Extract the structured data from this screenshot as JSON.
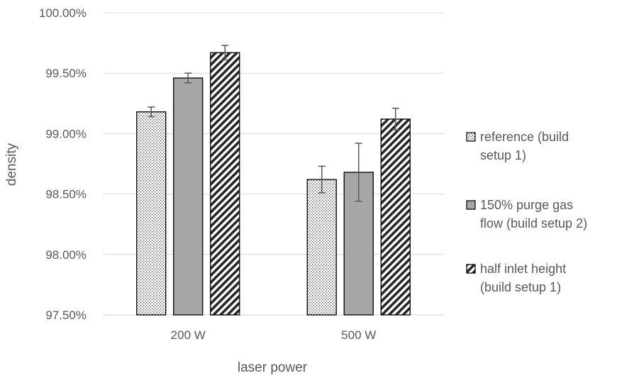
{
  "chart_data": {
    "type": "bar",
    "title": "",
    "xlabel": "laser power",
    "ylabel": "density",
    "categories": [
      "200 W",
      "500 W"
    ],
    "ylim": [
      0.975,
      1.0
    ],
    "yticks": [
      0.975,
      0.98,
      0.985,
      0.99,
      0.995,
      1.0
    ],
    "ytick_labels": [
      "97.50%",
      "98.00%",
      "98.50%",
      "99.00%",
      "99.50%",
      "100.00%"
    ],
    "grid": true,
    "legend_position": "right",
    "series": [
      {
        "name": "reference (build setup 1)",
        "legend_lines": [
          "reference (build",
          "setup 1)"
        ],
        "pattern": "dots",
        "values": [
          0.9918,
          0.9862
        ],
        "errors": [
          0.0004,
          0.0011
        ]
      },
      {
        "name": "150% purge gas flow (build setup 2)",
        "legend_lines": [
          "150% purge gas",
          "flow (build setup 2)"
        ],
        "pattern": "solid-gray",
        "values": [
          0.9946,
          0.9868
        ],
        "errors": [
          0.0004,
          0.0024
        ]
      },
      {
        "name": "half inlet height (build setup 1)",
        "legend_lines": [
          "half inlet height",
          "(build setup 1)"
        ],
        "pattern": "diagonal-stripes",
        "values": [
          0.9967,
          0.9912
        ],
        "errors": [
          0.0006,
          0.0009
        ]
      }
    ]
  }
}
